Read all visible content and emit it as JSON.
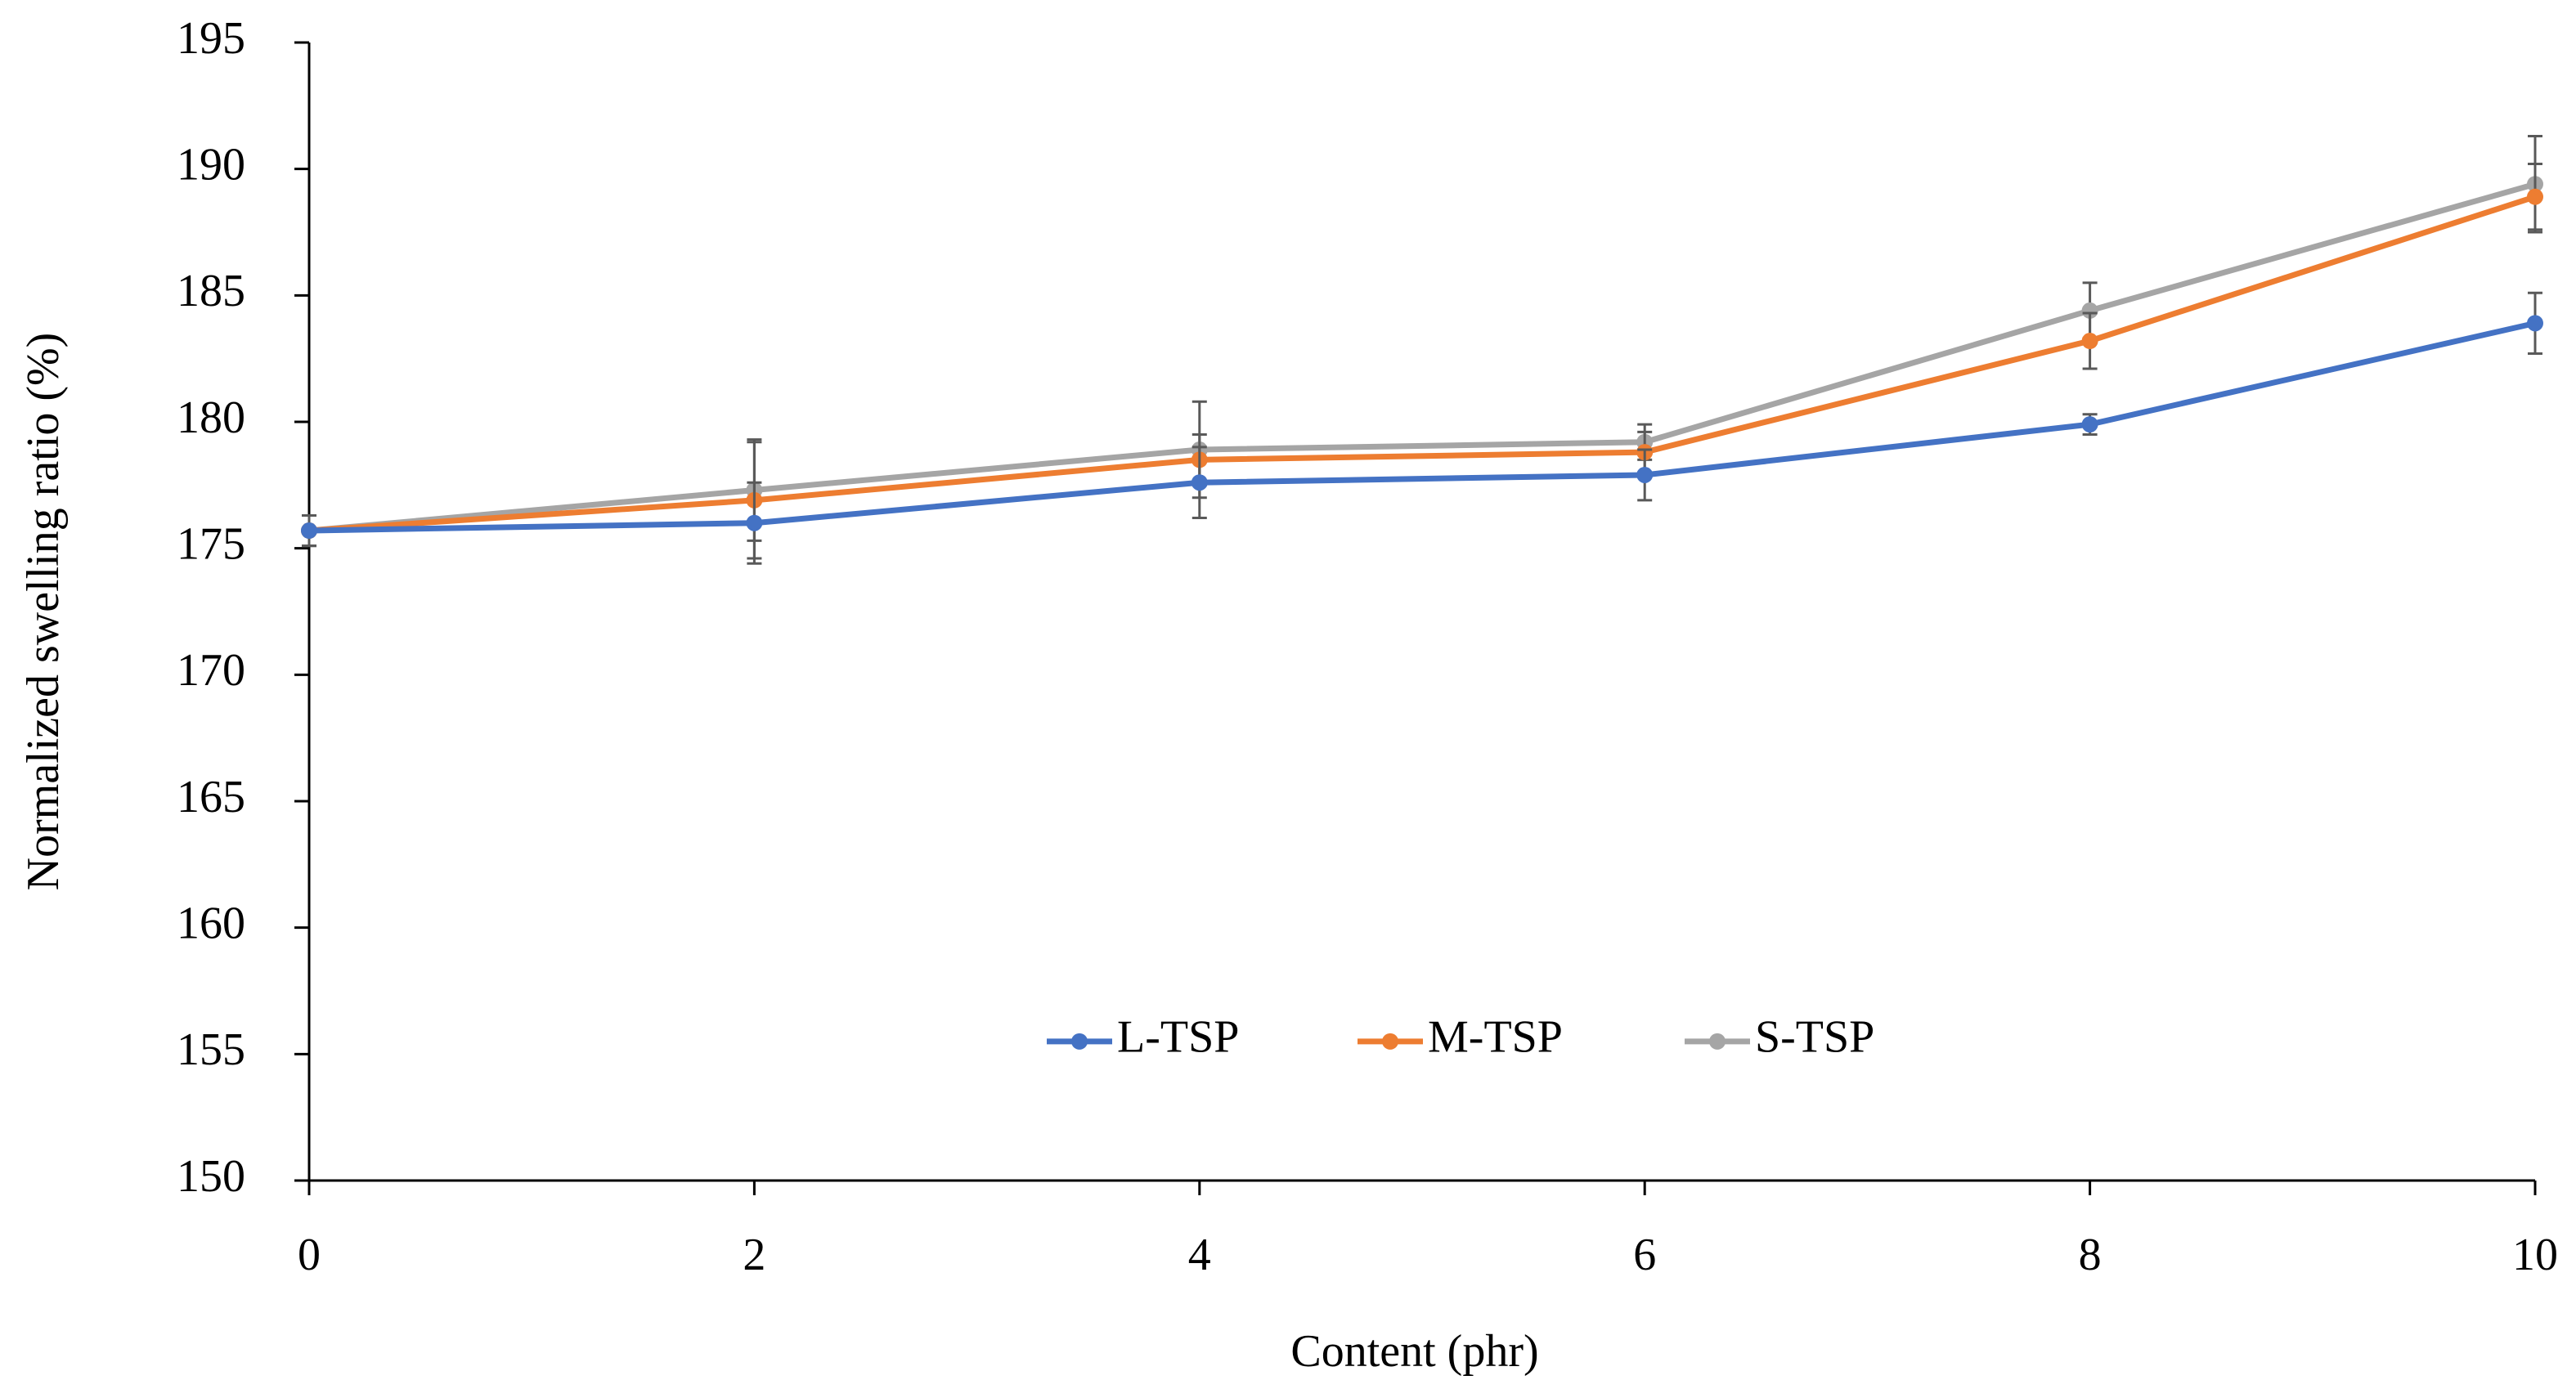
{
  "chart_data": {
    "type": "line",
    "x_label": "Content (phr)",
    "y_label": "Normalized swelling ratio (%)",
    "x": [
      0,
      2,
      4,
      6,
      8,
      10
    ],
    "xlim": [
      0,
      10
    ],
    "xticks": [
      0,
      2,
      4,
      6,
      8,
      10
    ],
    "ylim": [
      150,
      195
    ],
    "yticks": [
      150,
      155,
      160,
      165,
      170,
      175,
      180,
      185,
      190,
      195
    ],
    "grid": false,
    "legend": "center",
    "series": [
      {
        "name": "L-TSP",
        "color": "#4472c4",
        "values": [
          175.7,
          176.0,
          177.6,
          177.9,
          179.9,
          183.9
        ],
        "errors": [
          0.6,
          1.6,
          1.4,
          1.0,
          0.4,
          1.2
        ]
      },
      {
        "name": "M-TSP",
        "color": "#ed7d31",
        "values": [
          175.7,
          176.9,
          178.5,
          178.8,
          183.2,
          188.9
        ],
        "errors": [
          0.6,
          2.3,
          1.0,
          0.8,
          1.1,
          1.3
        ]
      },
      {
        "name": "S-TSP",
        "color": "#a5a5a5",
        "values": [
          175.7,
          177.3,
          178.9,
          179.2,
          184.4,
          189.4
        ],
        "errors": [
          0.6,
          2.0,
          1.9,
          0.7,
          1.1,
          1.9
        ]
      }
    ]
  }
}
